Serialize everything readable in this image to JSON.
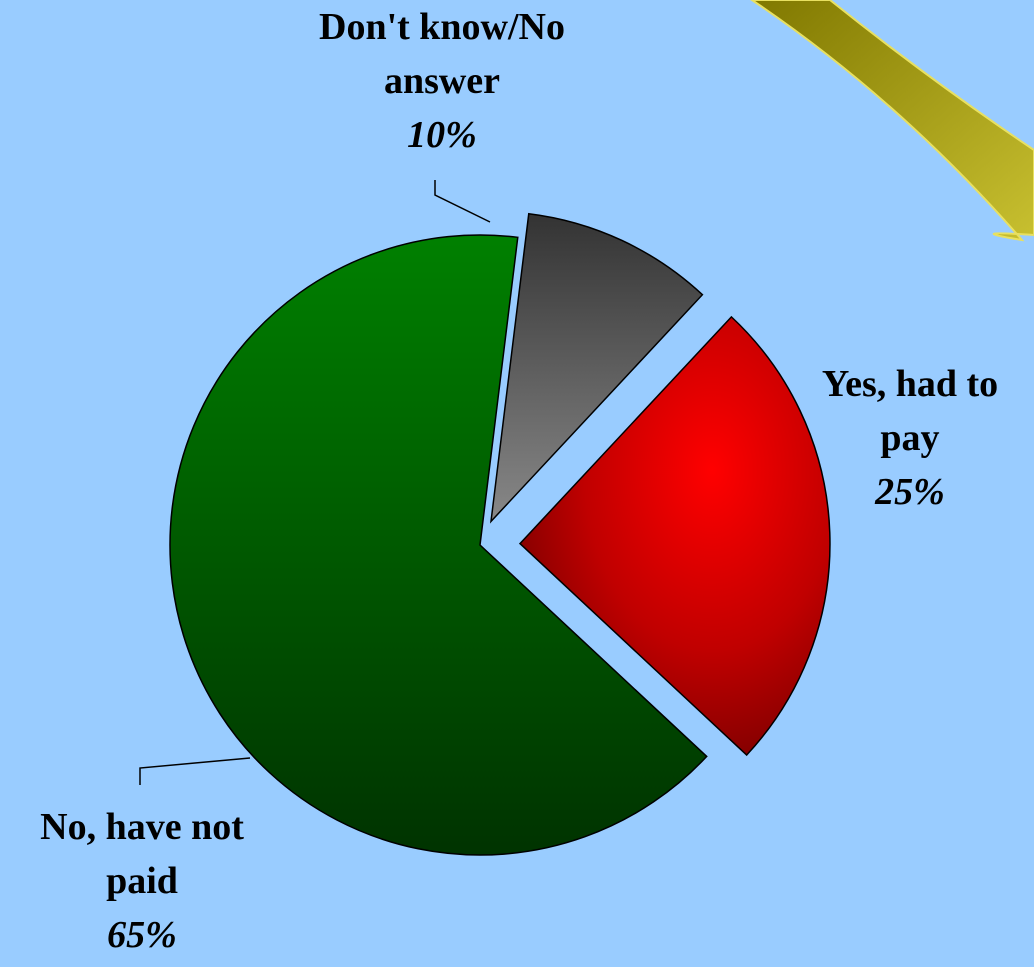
{
  "chart_data": {
    "type": "pie",
    "exploded": true,
    "slices": [
      {
        "label_lines": [
          "Don't know/No",
          "answer"
        ],
        "value": 10,
        "value_label": "10%",
        "color": "#3a3a3a",
        "color_light": "#808080"
      },
      {
        "label_lines": [
          "Yes, had to",
          "pay"
        ],
        "value": 25,
        "value_label": "25%",
        "color": "#7a0000",
        "color_light": "#ff0000"
      },
      {
        "label_lines": [
          "No, have not",
          "paid"
        ],
        "value": 65,
        "value_label": "65%",
        "color": "#003300",
        "color_light": "#008000"
      }
    ],
    "background": "#99ccff",
    "decoration_color": "#a8a000"
  }
}
